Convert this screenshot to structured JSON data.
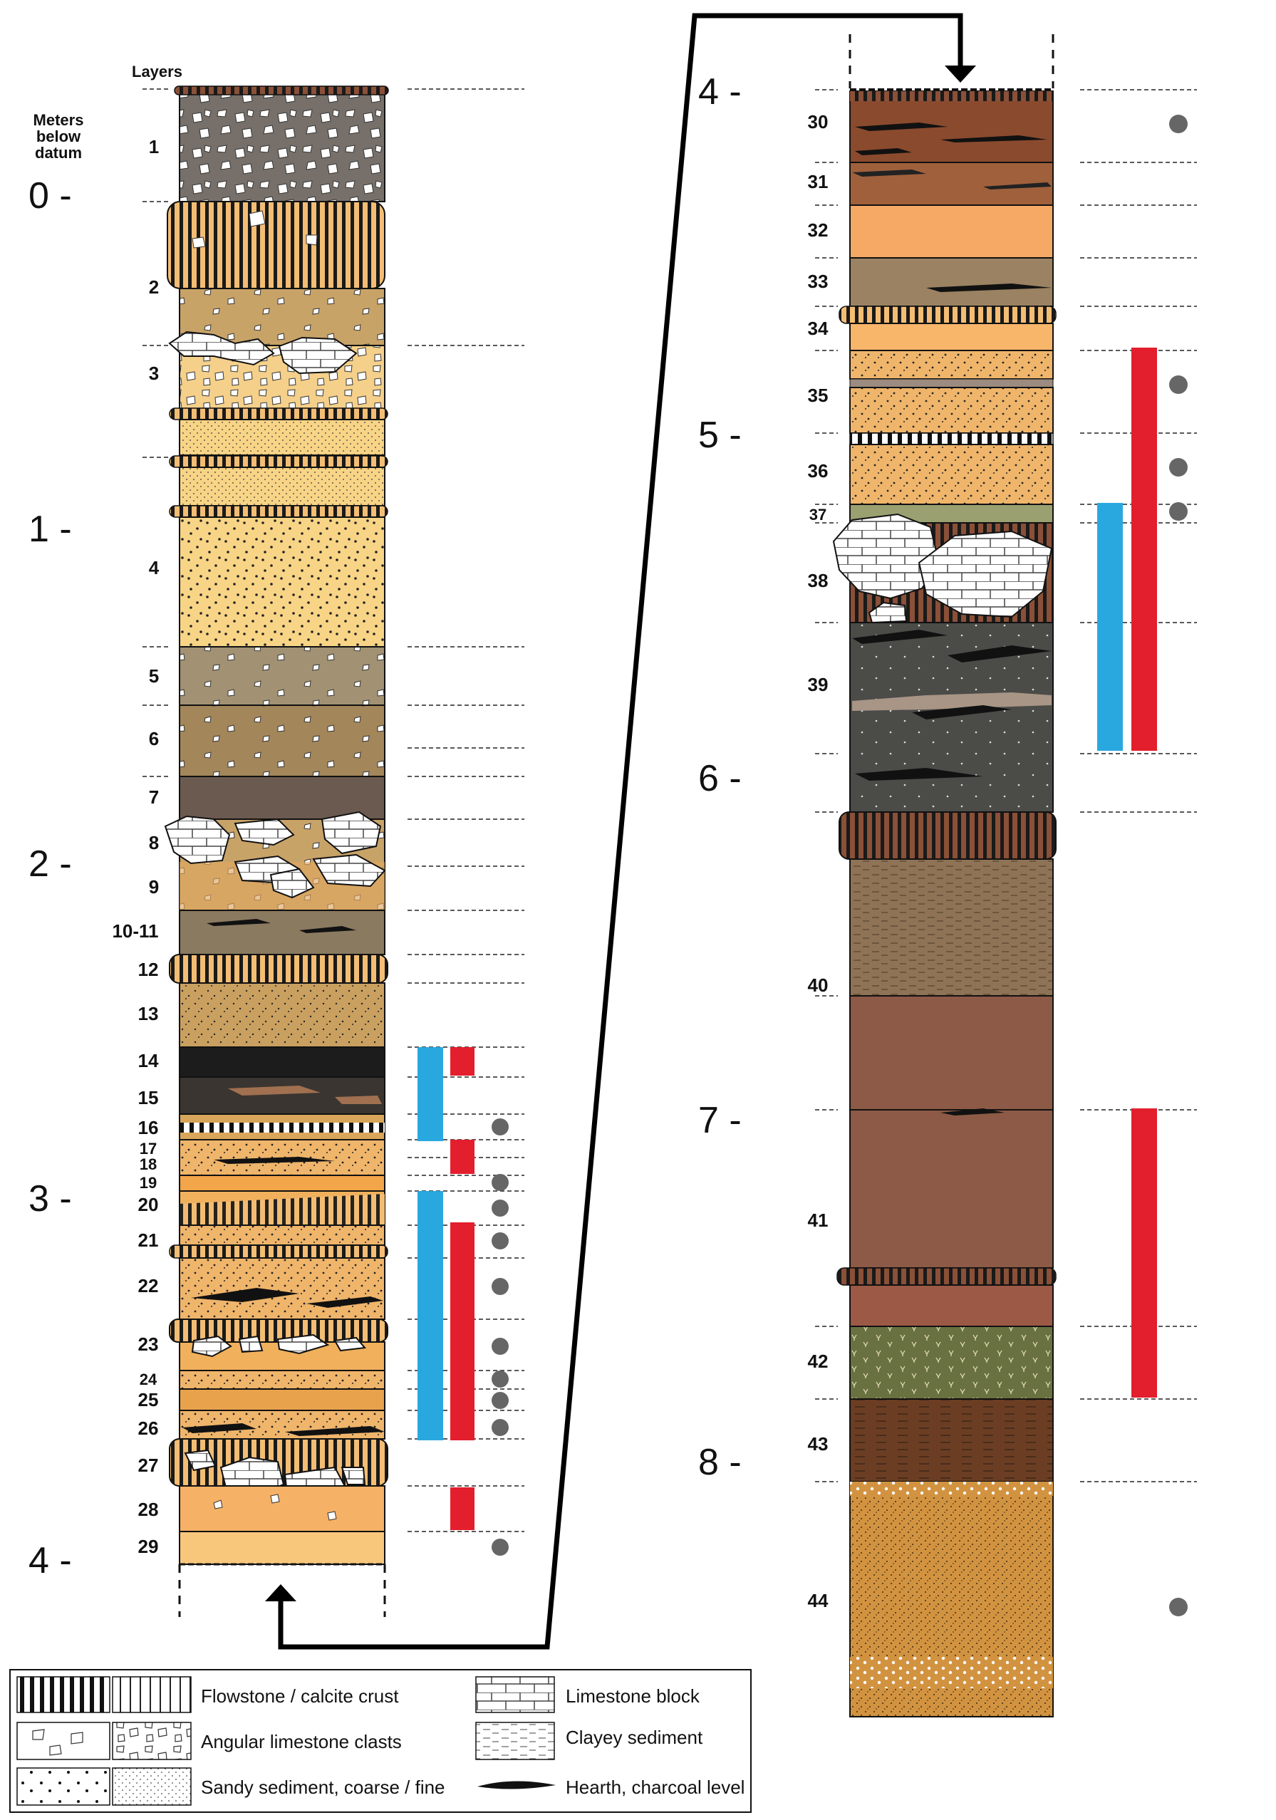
{
  "header": {
    "layers_label": "Layers",
    "axis_label_line1": "Meters",
    "axis_label_line2": "below",
    "axis_label_line3": "datum"
  },
  "meter_labels": [
    {
      "id": "m0",
      "text": "0 -"
    },
    {
      "id": "m1",
      "text": "1 -"
    },
    {
      "id": "m2",
      "text": "2 -"
    },
    {
      "id": "m3",
      "text": "3 -"
    },
    {
      "id": "m4a",
      "text": "4 -"
    },
    {
      "id": "m4b",
      "text": "4 -"
    },
    {
      "id": "m5",
      "text": "5 -"
    },
    {
      "id": "m6",
      "text": "6 -"
    },
    {
      "id": "m7",
      "text": "7 -"
    },
    {
      "id": "m8",
      "text": "8 -"
    }
  ],
  "layer_labels": [
    "1",
    "2",
    "3",
    "4",
    "5",
    "6",
    "7",
    "8",
    "9",
    "10-11",
    "12",
    "13",
    "14",
    "15",
    "16",
    "17",
    "18",
    "19",
    "20",
    "21",
    "22",
    "23",
    "24",
    "25",
    "26",
    "27",
    "28",
    "29",
    "30",
    "31",
    "32",
    "33",
    "34",
    "35",
    "36",
    "37",
    "38",
    "39",
    "40",
    "41",
    "42",
    "43",
    "44"
  ],
  "legend": {
    "flowstone": "Flowstone / calcite crust",
    "angular": "Angular limestone clasts",
    "sandy": "Sandy sediment, coarse / fine",
    "limestone_block": "Limestone block",
    "clayey": "Clayey sediment",
    "hearth": "Hearth, charcoal level"
  },
  "colors": {
    "blue_bar": "#29a8e0",
    "red_bar": "#e31e2d",
    "dot": "#666666",
    "arrow": "#000000"
  }
}
